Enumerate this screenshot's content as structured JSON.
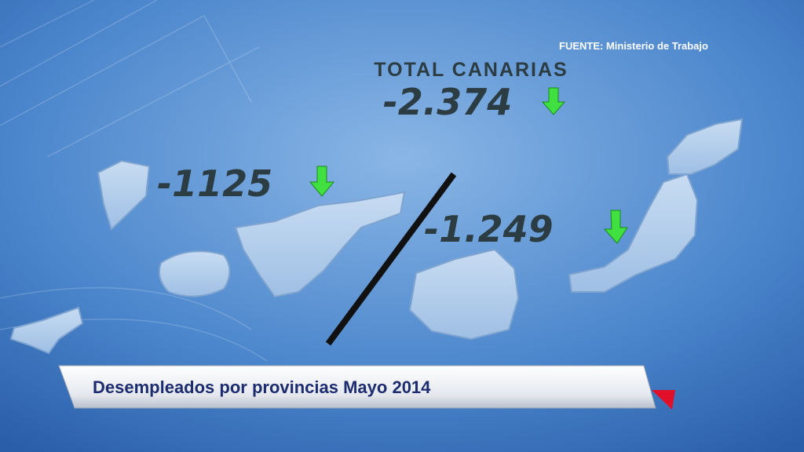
{
  "source": "FUENTE: Ministerio de Trabajo",
  "total": {
    "label": "TOTAL CANARIAS",
    "value": "-2.374"
  },
  "provinces": [
    {
      "value": "-1125"
    },
    {
      "value": "-1.249"
    }
  ],
  "caption": "Desempleados por provincias Mayo 2014"
}
